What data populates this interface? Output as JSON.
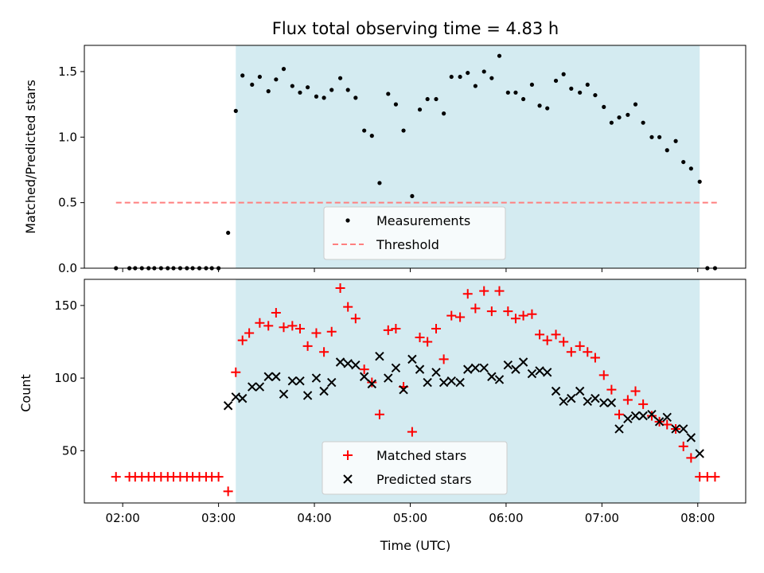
{
  "chart_data": [
    {
      "type": "scatter",
      "title": "Flux total observing time = 4.83 h",
      "xlabel": "",
      "ylabel": "Matched/Predicted stars",
      "xlim": [
        1.6,
        8.5
      ],
      "ylim": [
        0,
        1.7
      ],
      "yticks": [
        0.0,
        0.5,
        1.0,
        1.5
      ],
      "ytick_labels": [
        "0.0",
        "0.5",
        "1.0",
        "1.5"
      ],
      "observing_window": [
        3.18,
        8.02
      ],
      "shade_color": "#d4ebf1",
      "legend_position": "lower center",
      "series": [
        {
          "name": "Measurements",
          "marker": "dot",
          "color": "#000000",
          "x": [
            1.93,
            2.07,
            2.13,
            2.2,
            2.27,
            2.33,
            2.4,
            2.47,
            2.53,
            2.6,
            2.67,
            2.73,
            2.8,
            2.87,
            2.93,
            3.0,
            3.1,
            3.18,
            3.25,
            3.35,
            3.43,
            3.52,
            3.6,
            3.68,
            3.77,
            3.85,
            3.93,
            4.02,
            4.1,
            4.18,
            4.27,
            4.35,
            4.43,
            4.52,
            4.6,
            4.68,
            4.77,
            4.85,
            4.93,
            5.02,
            5.1,
            5.18,
            5.27,
            5.35,
            5.43,
            5.52,
            5.6,
            5.68,
            5.77,
            5.85,
            5.93,
            6.02,
            6.1,
            6.18,
            6.27,
            6.35,
            6.43,
            6.52,
            6.6,
            6.68,
            6.77,
            6.85,
            6.93,
            7.02,
            7.1,
            7.18,
            7.27,
            7.35,
            7.43,
            7.52,
            7.6,
            7.68,
            7.77,
            7.85,
            7.93,
            8.02,
            8.1,
            8.18
          ],
          "y": [
            0.0,
            0.0,
            0.0,
            0.0,
            0.0,
            0.0,
            0.0,
            0.0,
            0.0,
            0.0,
            0.0,
            0.0,
            0.0,
            0.0,
            0.0,
            0.0,
            0.27,
            1.2,
            1.47,
            1.4,
            1.46,
            1.35,
            1.44,
            1.52,
            1.39,
            1.34,
            1.38,
            1.31,
            1.3,
            1.36,
            1.45,
            1.36,
            1.3,
            1.05,
            1.01,
            0.65,
            1.33,
            1.25,
            1.05,
            0.55,
            1.21,
            1.29,
            1.29,
            1.18,
            1.46,
            1.46,
            1.49,
            1.39,
            1.5,
            1.45,
            1.62,
            1.34,
            1.34,
            1.29,
            1.4,
            1.24,
            1.22,
            1.43,
            1.48,
            1.37,
            1.34,
            1.4,
            1.32,
            1.23,
            1.11,
            1.15,
            1.17,
            1.25,
            1.11,
            1.0,
            1.0,
            0.9,
            0.97,
            0.81,
            0.76,
            0.66,
            0.0,
            0.0
          ]
        },
        {
          "name": "Threshold",
          "marker": "dashed-line",
          "color": "#ff7f7f",
          "x": [
            1.93,
            8.2
          ],
          "y": [
            0.5,
            0.5
          ]
        }
      ]
    },
    {
      "type": "scatter",
      "title": "",
      "xlabel": "Time (UTC)",
      "ylabel": "Count",
      "xlim": [
        1.6,
        8.5
      ],
      "ylim": [
        14,
        168
      ],
      "xticks": [
        2,
        3,
        4,
        5,
        6,
        7,
        8
      ],
      "xtick_labels": [
        "02:00",
        "03:00",
        "04:00",
        "05:00",
        "06:00",
        "07:00",
        "08:00"
      ],
      "yticks": [
        50,
        100,
        150
      ],
      "ytick_labels": [
        "50",
        "100",
        "150"
      ],
      "observing_window": [
        3.18,
        8.02
      ],
      "shade_color": "#d4ebf1",
      "legend_position": "lower center",
      "series": [
        {
          "name": "Matched stars",
          "marker": "plus",
          "color": "#ff0000",
          "x": [
            1.93,
            2.07,
            2.13,
            2.2,
            2.27,
            2.33,
            2.4,
            2.47,
            2.53,
            2.6,
            2.67,
            2.73,
            2.8,
            2.87,
            2.93,
            3.0,
            3.1,
            3.18,
            3.25,
            3.32,
            3.43,
            3.52,
            3.6,
            3.68,
            3.77,
            3.85,
            3.93,
            4.02,
            4.1,
            4.18,
            4.27,
            4.35,
            4.43,
            4.52,
            4.6,
            4.68,
            4.77,
            4.85,
            4.93,
            5.02,
            5.1,
            5.18,
            5.27,
            5.35,
            5.43,
            5.52,
            5.6,
            5.68,
            5.77,
            5.85,
            5.93,
            6.02,
            6.1,
            6.18,
            6.27,
            6.35,
            6.43,
            6.52,
            6.6,
            6.68,
            6.77,
            6.85,
            6.93,
            7.02,
            7.1,
            7.18,
            7.27,
            7.35,
            7.43,
            7.52,
            7.6,
            7.68,
            7.77,
            7.85,
            7.93,
            8.02,
            8.1,
            8.18
          ],
          "y": [
            32,
            32,
            32,
            32,
            32,
            32,
            32,
            32,
            32,
            32,
            32,
            32,
            32,
            32,
            32,
            32,
            22,
            104,
            126,
            131,
            138,
            136,
            145,
            135,
            136,
            134,
            122,
            131,
            118,
            132,
            162,
            149,
            141,
            106,
            97,
            75,
            133,
            134,
            94,
            63,
            128,
            125,
            134,
            113,
            143,
            142,
            158,
            148,
            160,
            146,
            160,
            146,
            141,
            143,
            144,
            130,
            126,
            130,
            125,
            118,
            122,
            118,
            114,
            102,
            92,
            75,
            85,
            91,
            82,
            74,
            70,
            68,
            65,
            53,
            45,
            32,
            32,
            32
          ]
        },
        {
          "name": "Predicted stars",
          "marker": "x",
          "color": "#000000",
          "x": [
            3.1,
            3.18,
            3.25,
            3.35,
            3.43,
            3.52,
            3.6,
            3.68,
            3.77,
            3.85,
            3.93,
            4.02,
            4.1,
            4.18,
            4.27,
            4.35,
            4.43,
            4.52,
            4.6,
            4.68,
            4.77,
            4.85,
            4.93,
            5.02,
            5.1,
            5.18,
            5.27,
            5.35,
            5.43,
            5.52,
            5.6,
            5.68,
            5.77,
            5.85,
            5.93,
            6.02,
            6.1,
            6.18,
            6.27,
            6.35,
            6.43,
            6.52,
            6.6,
            6.68,
            6.77,
            6.85,
            6.93,
            7.02,
            7.1,
            7.18,
            7.27,
            7.35,
            7.43,
            7.52,
            7.6,
            7.68,
            7.77,
            7.85,
            7.93,
            8.02
          ],
          "y": [
            81,
            87,
            86,
            94,
            94,
            101,
            101,
            89,
            98,
            98,
            88,
            100,
            91,
            97,
            111,
            110,
            109,
            101,
            96,
            115,
            100,
            107,
            92,
            113,
            106,
            97,
            104,
            97,
            98,
            97,
            106,
            107,
            107,
            101,
            99,
            109,
            106,
            111,
            103,
            105,
            104,
            91,
            84,
            86,
            91,
            84,
            86,
            83,
            83,
            65,
            72,
            74,
            74,
            75,
            70,
            73,
            65,
            65,
            59,
            48
          ]
        }
      ]
    }
  ]
}
